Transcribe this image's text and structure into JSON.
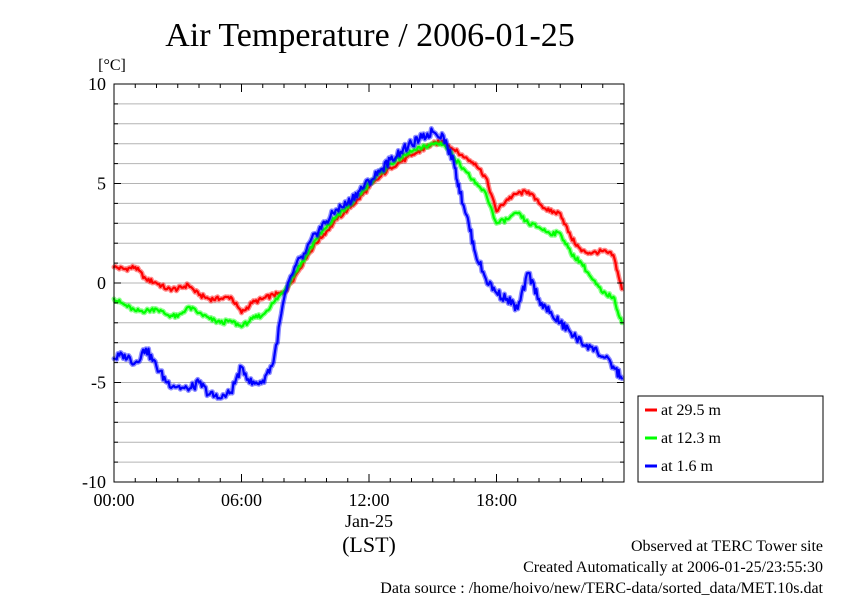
{
  "chart_data": {
    "type": "line",
    "title": "Air Temperature / 2006-01-25",
    "ylabel": "[°C]",
    "xlabel": "(LST)",
    "ylim": [
      -10,
      10
    ],
    "xlim_hours": [
      0,
      24
    ],
    "y_ticks": [
      "10",
      "5",
      "0",
      "-5",
      "-10"
    ],
    "y_tick_values": [
      10,
      5,
      0,
      -5,
      -10
    ],
    "x_ticks": [
      "00:00",
      "06:00",
      "12:00",
      "18:00"
    ],
    "x_tick_values": [
      0,
      6,
      12,
      18
    ],
    "date_label": "Jan-25",
    "grid": "horizontal, every 1 °C",
    "legend_position": "bottom-right, outside plot",
    "series": [
      {
        "name": "at 29.5 m",
        "color": "#ff0000",
        "x": [
          0,
          0.5,
          1,
          1.5,
          2,
          2.5,
          3,
          3.5,
          4,
          4.5,
          5,
          5.5,
          6,
          6.5,
          7,
          7.5,
          8,
          8.5,
          9,
          9.5,
          10,
          10.5,
          11,
          11.5,
          12,
          12.5,
          13,
          13.5,
          14,
          14.5,
          15,
          15.5,
          16,
          16.5,
          17,
          17.5,
          18,
          18.5,
          19,
          19.5,
          20,
          20.5,
          21,
          21.5,
          22,
          22.5,
          23,
          23.5,
          23.9
        ],
        "y": [
          0.8,
          0.7,
          0.8,
          0.2,
          0.0,
          -0.3,
          -0.3,
          -0.1,
          -0.6,
          -0.8,
          -0.8,
          -0.7,
          -1.5,
          -1.0,
          -0.8,
          -0.6,
          -0.5,
          0.3,
          1.2,
          2.0,
          2.6,
          3.2,
          3.7,
          4.2,
          4.8,
          5.3,
          5.8,
          6.1,
          6.4,
          6.7,
          7.0,
          7.1,
          6.7,
          6.3,
          6.0,
          5.3,
          3.6,
          4.2,
          4.5,
          4.6,
          4.0,
          3.6,
          3.5,
          2.3,
          1.6,
          1.5,
          1.6,
          1.4,
          -0.3
        ]
      },
      {
        "name": "at 12.3 m",
        "color": "#00ff00",
        "x": [
          0,
          0.5,
          1,
          1.5,
          2,
          2.5,
          3,
          3.5,
          4,
          4.5,
          5,
          5.5,
          6,
          6.5,
          7,
          7.5,
          8,
          8.5,
          9,
          9.5,
          10,
          10.5,
          11,
          11.5,
          12,
          12.5,
          13,
          13.5,
          14,
          14.5,
          15,
          15.5,
          16,
          16.5,
          17,
          17.5,
          18,
          18.5,
          19,
          19.5,
          20,
          20.5,
          21,
          21.5,
          22,
          22.5,
          23,
          23.5,
          23.9
        ],
        "y": [
          -0.8,
          -1.1,
          -1.4,
          -1.4,
          -1.3,
          -1.6,
          -1.7,
          -1.2,
          -1.5,
          -1.8,
          -2.0,
          -1.9,
          -2.2,
          -1.8,
          -1.6,
          -1.0,
          -0.4,
          0.5,
          1.3,
          2.2,
          2.8,
          3.4,
          3.8,
          4.4,
          5.0,
          5.5,
          6.0,
          6.3,
          6.6,
          6.8,
          7.0,
          7.0,
          6.3,
          5.7,
          5.0,
          4.5,
          3.0,
          3.2,
          3.5,
          3.0,
          2.8,
          2.5,
          2.5,
          1.5,
          1.0,
          0.2,
          -0.5,
          -0.7,
          -2.0
        ]
      },
      {
        "name": "at 1.6 m",
        "color": "#0000ff",
        "x": [
          0,
          0.5,
          1,
          1.5,
          2,
          2.5,
          3,
          3.5,
          4,
          4.5,
          5,
          5.5,
          6,
          6.5,
          7,
          7.5,
          8,
          8.5,
          9,
          9.5,
          10,
          10.5,
          11,
          11.5,
          12,
          12.5,
          13,
          13.5,
          14,
          14.5,
          15,
          15.5,
          16,
          16.3,
          16.6,
          17,
          17.5,
          18,
          18.5,
          19,
          19.5,
          20,
          20.5,
          21,
          21.5,
          22,
          22.5,
          23,
          23.5,
          23.9
        ],
        "y": [
          -3.8,
          -3.6,
          -4.0,
          -3.3,
          -4.2,
          -5.0,
          -5.2,
          -5.4,
          -5.0,
          -5.6,
          -5.8,
          -5.5,
          -4.2,
          -5.1,
          -4.9,
          -4.0,
          -0.8,
          0.8,
          1.5,
          2.5,
          3.1,
          3.7,
          4.0,
          4.6,
          5.1,
          5.6,
          6.2,
          6.6,
          7.0,
          7.3,
          7.6,
          7.4,
          6.0,
          4.5,
          3.4,
          1.5,
          0.2,
          -0.5,
          -0.8,
          -1.3,
          0.5,
          -0.8,
          -1.5,
          -2.0,
          -2.5,
          -3.0,
          -3.2,
          -3.7,
          -4.2,
          -4.8
        ]
      }
    ]
  },
  "footer": {
    "line1": "Observed at TERC Tower site",
    "line2": "Created Automatically at 2006-01-25/23:55:30",
    "line3": "Data source : /home/hoivo/new/TERC-data/sorted_data/MET.10s.dat"
  }
}
